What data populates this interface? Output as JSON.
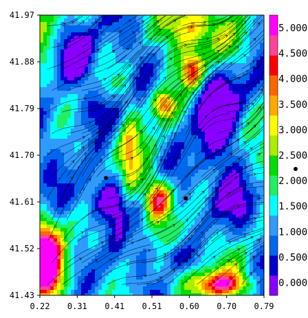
{
  "chart_data": {
    "type": "heatmap",
    "title": "",
    "xlabel": "",
    "ylabel": "",
    "xlim": [
      0.22,
      0.79
    ],
    "ylim": [
      41.43,
      41.97
    ],
    "x_ticks": [
      "0.22",
      "0.31",
      "0.41",
      "0.51",
      "0.60",
      "0.70",
      "0.79"
    ],
    "y_ticks": [
      "41.97",
      "41.88",
      "41.79",
      "41.70",
      "41.61",
      "41.52",
      "41.43"
    ],
    "colorbar": {
      "range": [
        -0.25,
        5.25
      ],
      "tick_labels": [
        "0.000",
        "0.500",
        "1.000",
        "1.500",
        "2.000",
        "2.500",
        "3.000",
        "3.500",
        "4.000",
        "4.500",
        "5.000"
      ],
      "colors": [
        "#8800ff",
        "#0000cc",
        "#0066ee",
        "#2f9bff",
        "#00ffff",
        "#22ee66",
        "#00dd00",
        "#aaee00",
        "#ffff00",
        "#ffaa00",
        "#ff6600",
        "#ff0000",
        "#ff4499",
        "#ff00ff"
      ]
    },
    "markers": [
      {
        "x": 0.388,
        "y": 41.656
      },
      {
        "x": 0.591,
        "y": 41.617
      }
    ],
    "grid": false,
    "legend": "colorbar-right",
    "overlay": "streamlines"
  }
}
